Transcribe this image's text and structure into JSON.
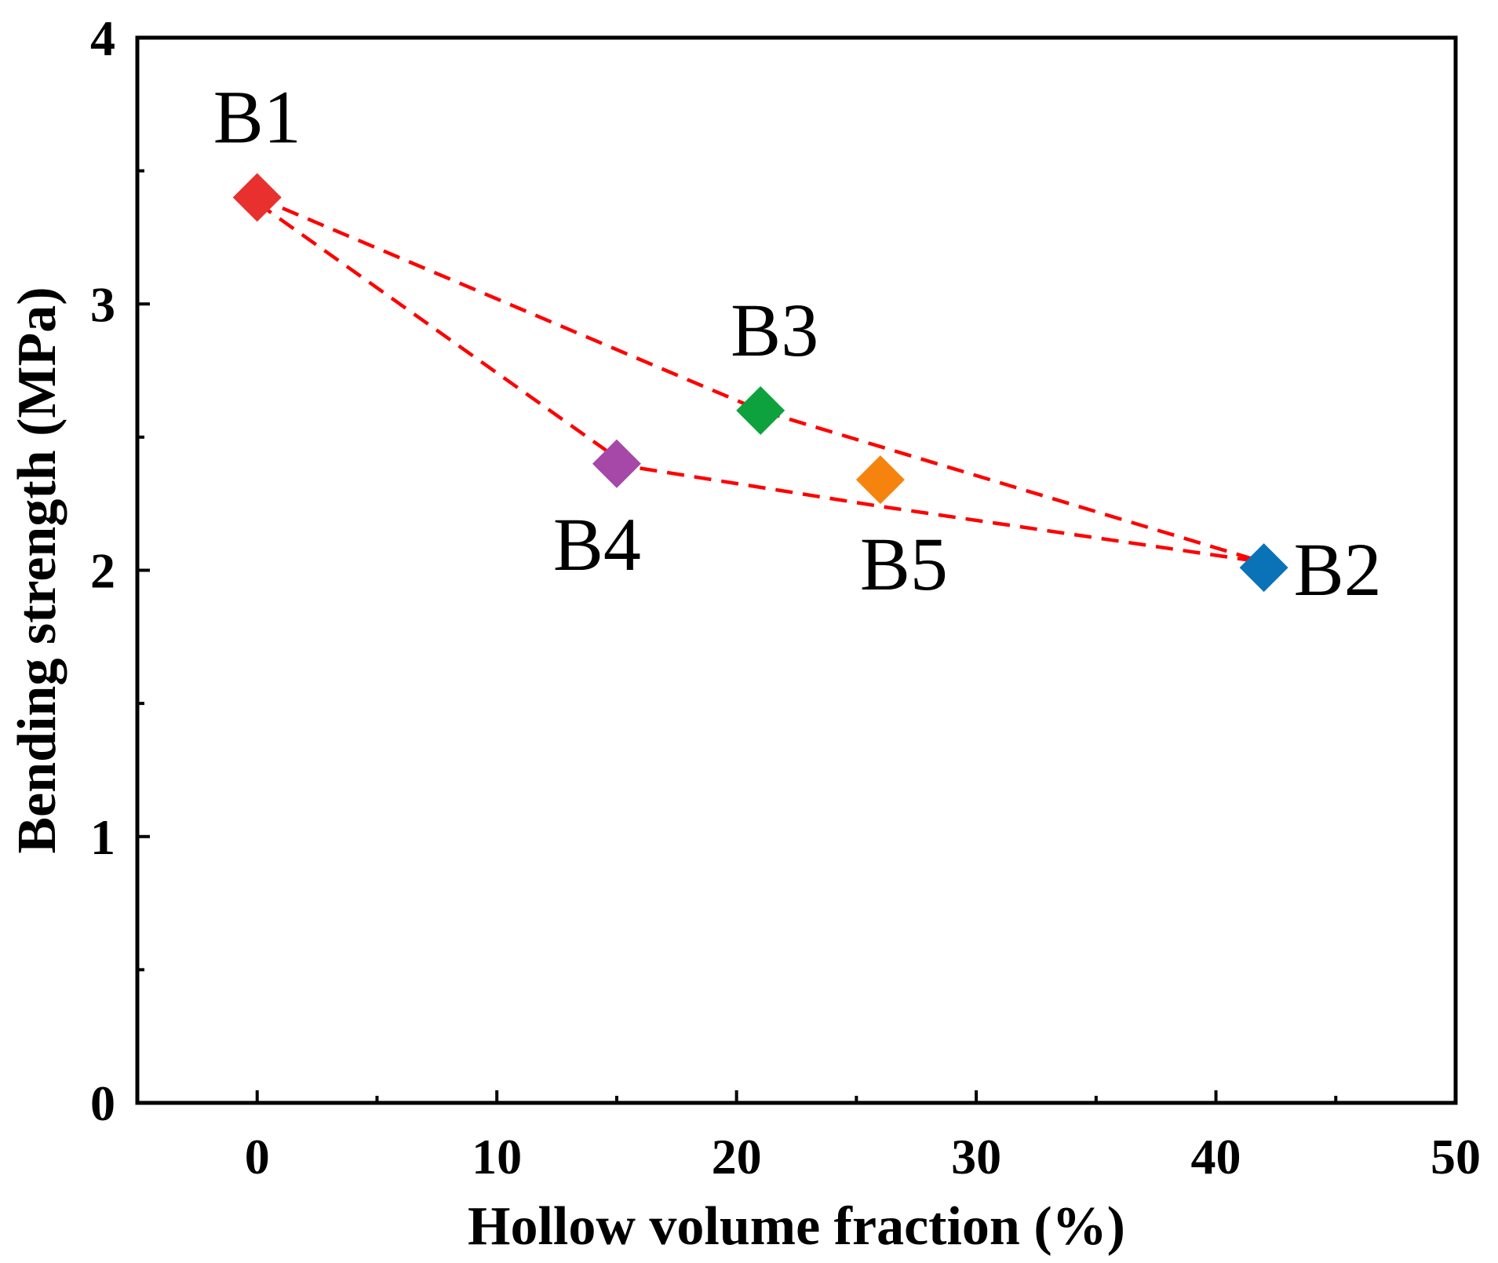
{
  "chart_data": {
    "type": "scatter",
    "title": "",
    "xlabel": "Hollow volume fraction (%)",
    "ylabel": "Bending strength (MPa)",
    "xlim": [
      -5,
      50
    ],
    "ylim": [
      0,
      4
    ],
    "x_ticks": [
      0,
      10,
      20,
      30,
      40,
      50
    ],
    "y_ticks": [
      0,
      1,
      2,
      3,
      4
    ],
    "x_tick_labels": [
      "0",
      "10",
      "20",
      "30",
      "40",
      "50"
    ],
    "y_tick_labels": [
      "0",
      "1",
      "2",
      "3",
      "4"
    ],
    "grid": false,
    "marker": "diamond",
    "points": [
      {
        "label": "B1",
        "x": 0,
        "y": 3.4,
        "color": "#e8312f"
      },
      {
        "label": "B2",
        "x": 42,
        "y": 2.01,
        "color": "#0a73b8"
      },
      {
        "label": "B3",
        "x": 21,
        "y": 2.6,
        "color": "#0ea23e"
      },
      {
        "label": "B4",
        "x": 15,
        "y": 2.4,
        "color": "#a648a8"
      },
      {
        "label": "B5",
        "x": 26,
        "y": 2.34,
        "color": "#f7830f"
      }
    ],
    "trend_lines": [
      {
        "name": "upper-trend",
        "color": "#ff0000",
        "style": "dashed",
        "x": [
          0,
          21,
          42
        ],
        "y": [
          3.4,
          2.6,
          2.03
        ]
      },
      {
        "name": "lower-trend",
        "color": "#ff0000",
        "style": "dashed",
        "x": [
          0,
          15.5,
          26,
          42
        ],
        "y": [
          3.38,
          2.39,
          2.24,
          2.03
        ]
      }
    ]
  }
}
